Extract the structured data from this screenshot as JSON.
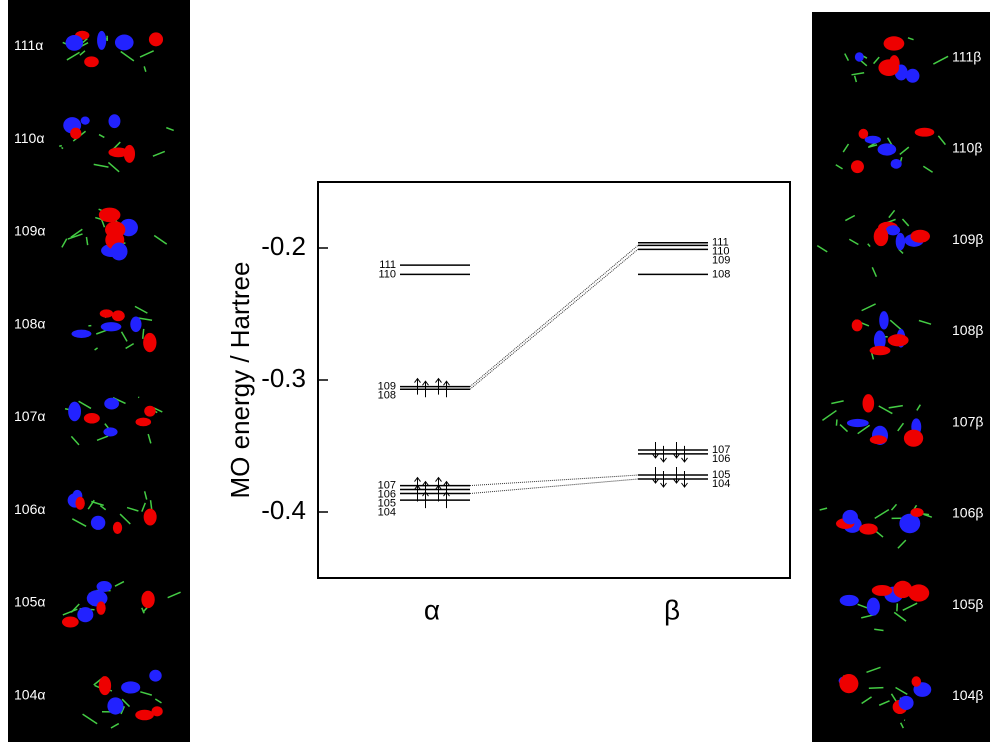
{
  "chart_data": {
    "type": "levels",
    "ylabel": "MO energy / Hartree",
    "ylim": [
      -0.45,
      -0.15
    ],
    "yticks": [
      -0.4,
      -0.3,
      -0.2
    ],
    "series": [
      {
        "name": "α",
        "labels": [
          "111",
          "110",
          "109",
          "108",
          "107",
          "106",
          "105",
          "104"
        ],
        "values": [
          -0.213,
          -0.22,
          -0.305,
          -0.307,
          -0.38,
          -0.383,
          -0.386,
          -0.391
        ]
      },
      {
        "name": "β",
        "labels": [
          "111",
          "110",
          "109",
          "108",
          "107",
          "106",
          "105",
          "104"
        ],
        "values": [
          -0.196,
          -0.198,
          -0.201,
          -0.22,
          -0.353,
          -0.356,
          -0.372,
          -0.375
        ]
      }
    ]
  },
  "panels": {
    "alpha": [
      "111α",
      "110α",
      "109α",
      "108α",
      "107α",
      "106α",
      "105α",
      "104α"
    ],
    "beta": [
      "111β",
      "110β",
      "109β",
      "108β",
      "107β",
      "106β",
      "105β",
      "104β"
    ]
  }
}
